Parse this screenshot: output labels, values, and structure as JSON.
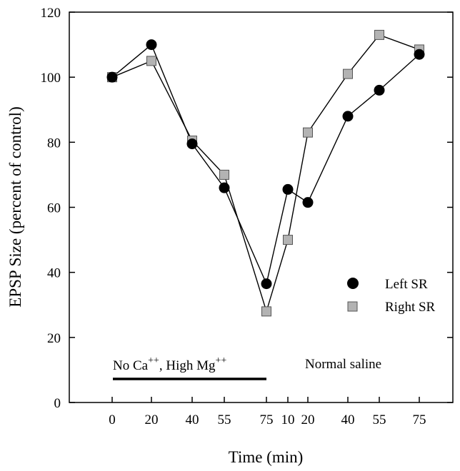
{
  "chart_data": {
    "type": "line",
    "xlabel": "Time (min)",
    "ylabel": "EPSP Size (percent of control)",
    "ylim": [
      0,
      120
    ],
    "yticks": [
      0,
      20,
      40,
      60,
      80,
      100,
      120
    ],
    "x_tick_labels": [
      "0",
      "20",
      "40",
      "55",
      "75",
      "10",
      "20",
      "40",
      "55",
      "75"
    ],
    "grid": false,
    "legend_position": "lower-right",
    "annotations": {
      "treatment_base": "No Ca",
      "treatment_sup1": "++",
      "treatment_mid": ", High Mg",
      "treatment_sup2": "++",
      "recovery": "Normal saline"
    },
    "series": [
      {
        "name": "Left SR",
        "marker": "circle",
        "color": "#000000",
        "values": [
          100,
          110,
          79.5,
          66,
          36.5,
          65.5,
          61.5,
          88,
          96,
          107
        ]
      },
      {
        "name": "Right SR",
        "marker": "square",
        "color": "#b3b3b3",
        "values": [
          100,
          105,
          80.5,
          70,
          28,
          50,
          83,
          101,
          113,
          108.5
        ]
      }
    ]
  }
}
